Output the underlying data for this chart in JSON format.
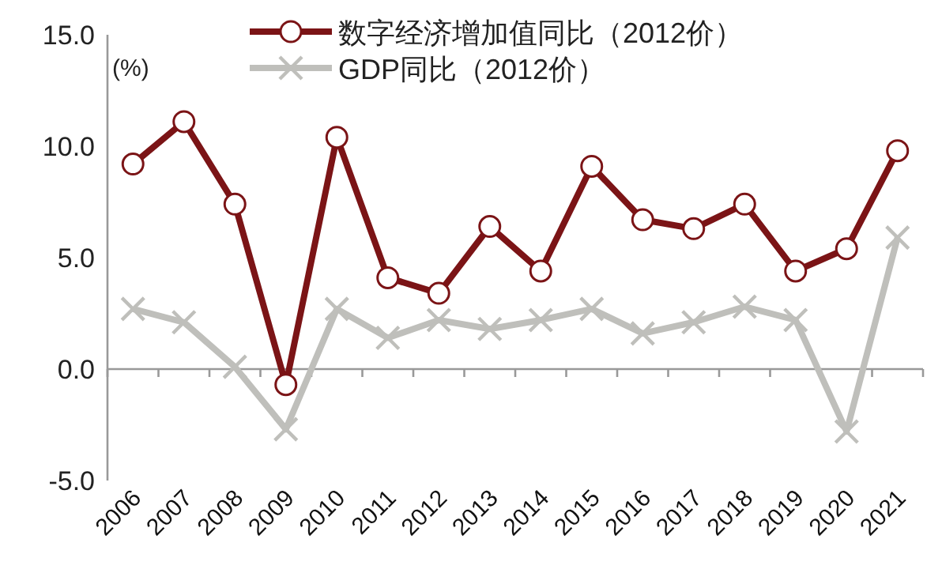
{
  "chart_data": {
    "type": "line",
    "ylabel": "(%)",
    "legend": "top",
    "categories": [
      "2006",
      "2007",
      "2008",
      "2009",
      "2010",
      "2011",
      "2012",
      "2013",
      "2014",
      "2015",
      "2016",
      "2017",
      "2018",
      "2019",
      "2020",
      "2021"
    ],
    "ylim": [
      -5,
      15
    ],
    "yticks": [
      {
        "value": -5,
        "label": "-5.0"
      },
      {
        "value": 0,
        "label": "0.0"
      },
      {
        "value": 5,
        "label": "5.0"
      },
      {
        "value": 10,
        "label": "10.0"
      },
      {
        "value": 15,
        "label": "15.0"
      }
    ],
    "series": [
      {
        "name": "数字经济增加值同比（2012价）",
        "color": "#7b1416",
        "marker": "circle",
        "values": [
          9.2,
          11.1,
          7.4,
          -0.7,
          10.4,
          4.1,
          3.4,
          6.4,
          4.4,
          9.1,
          6.7,
          6.3,
          7.4,
          4.4,
          5.4,
          9.8
        ]
      },
      {
        "name": "GDP同比（2012价）",
        "color": "#bfbfbb",
        "marker": "cross",
        "values": [
          2.7,
          2.1,
          0.1,
          -2.7,
          2.7,
          1.4,
          2.2,
          1.8,
          2.2,
          2.7,
          1.6,
          2.1,
          2.8,
          2.2,
          -2.8,
          5.9
        ]
      }
    ]
  }
}
